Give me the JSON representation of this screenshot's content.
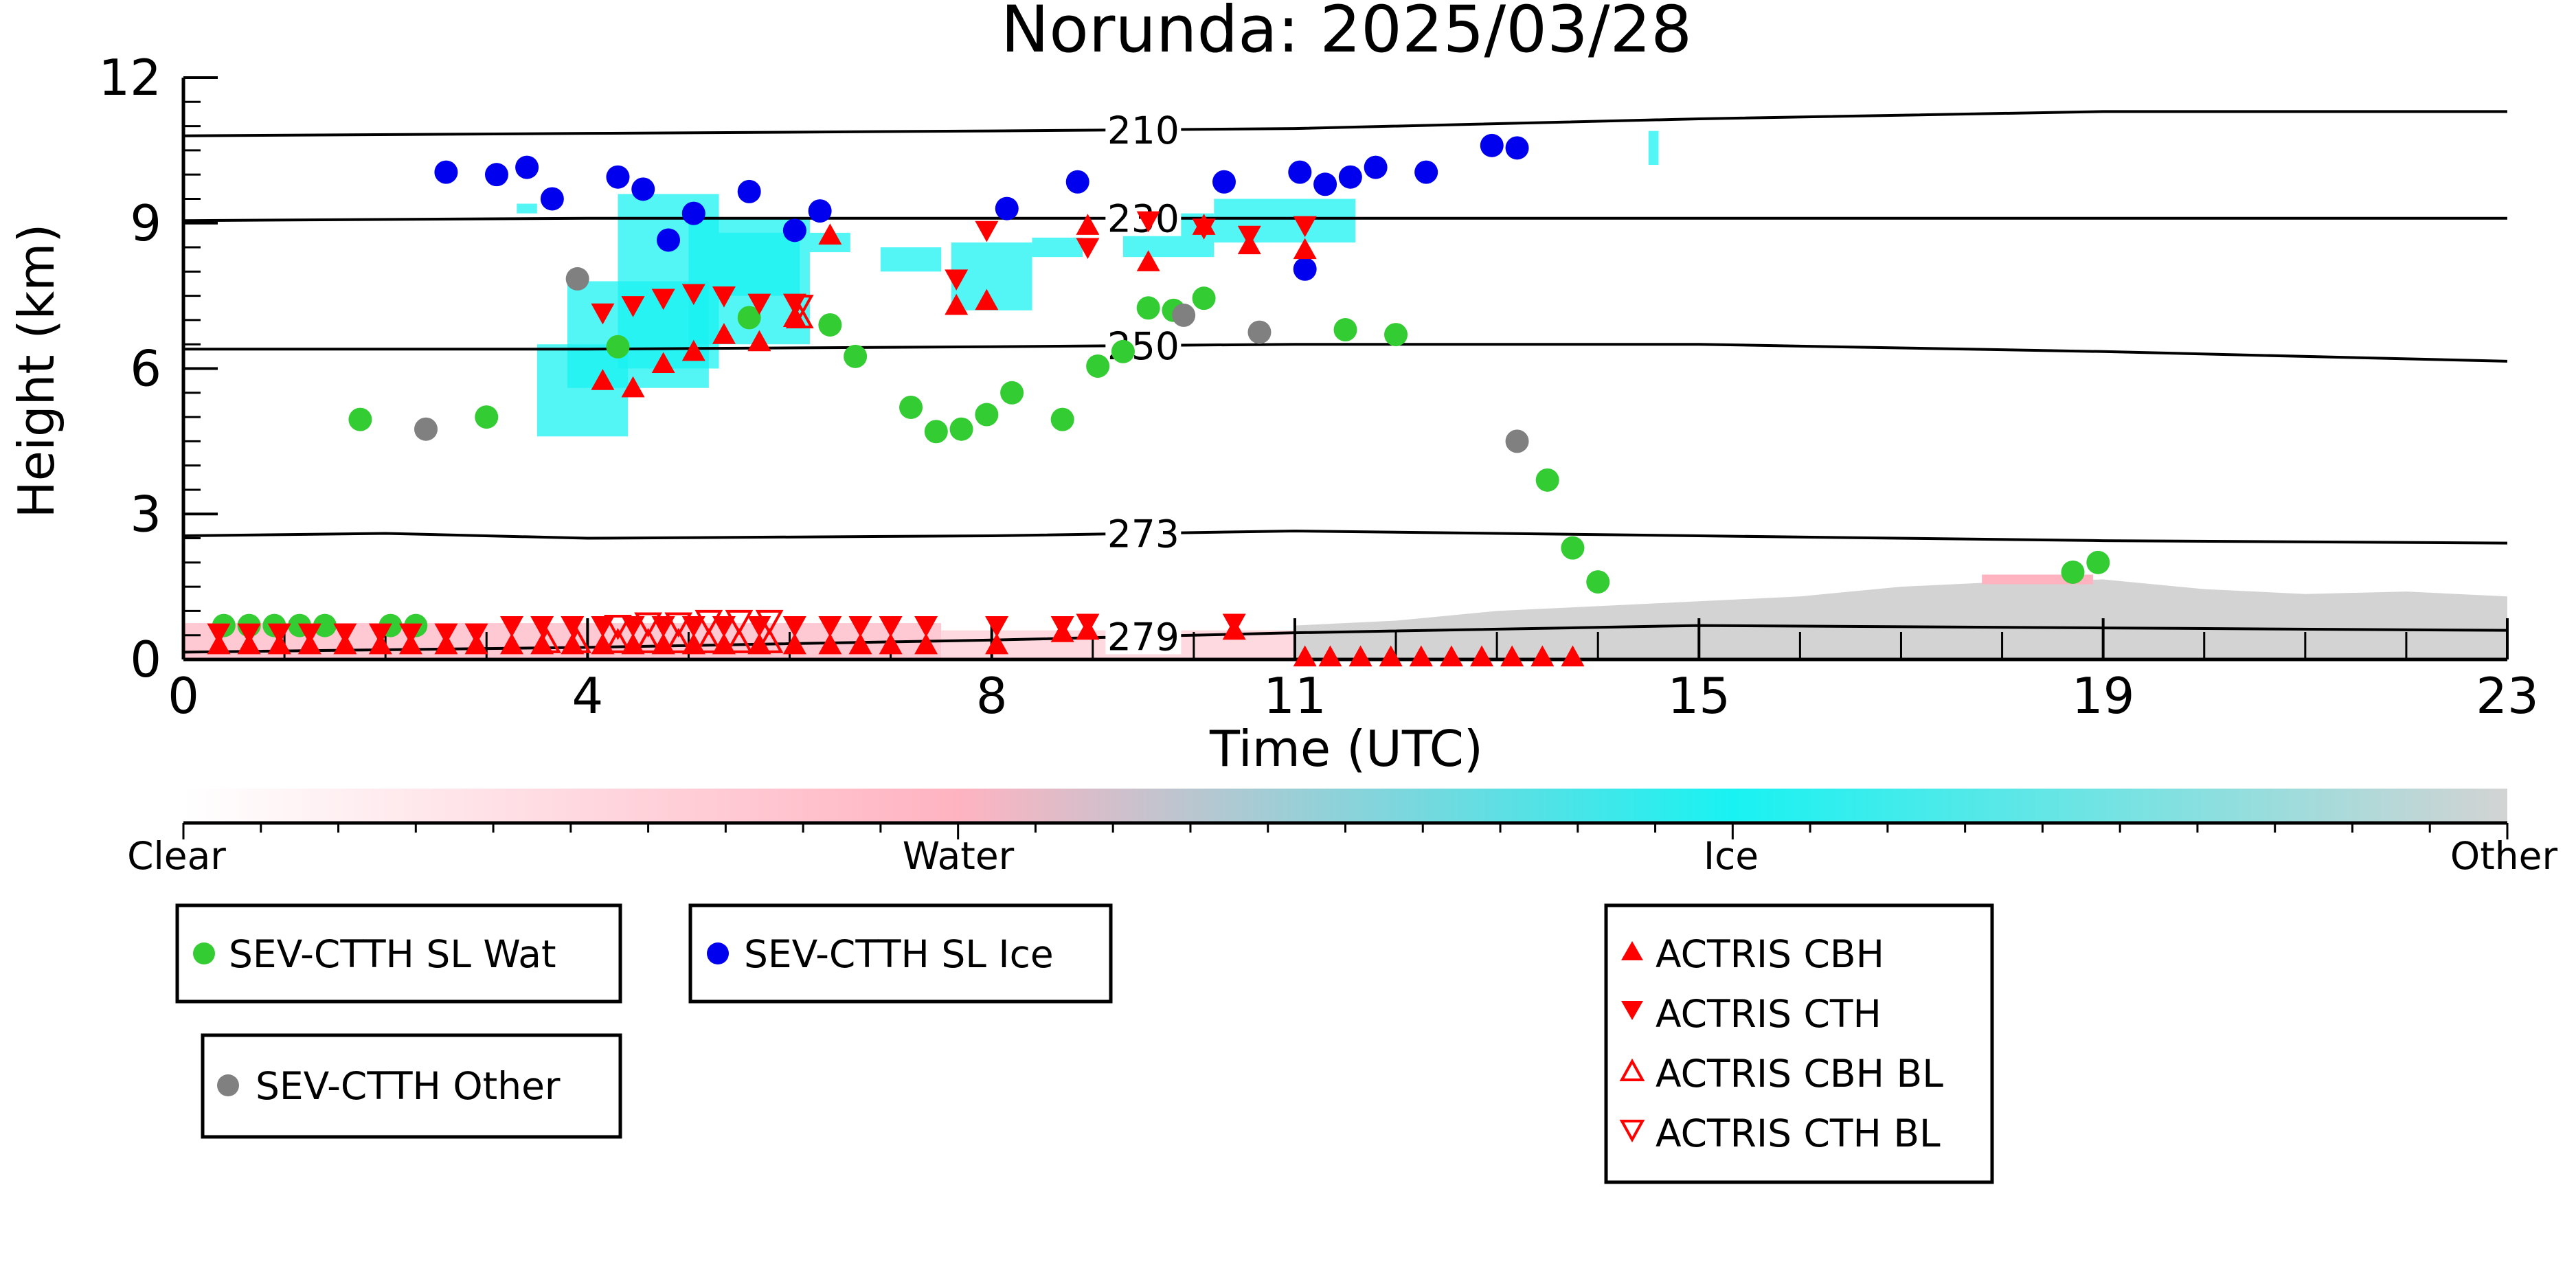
{
  "chart_data": {
    "type": "scatter",
    "title": "Norunda: 2025/03/28",
    "xlabel": "Time (UTC)",
    "ylabel": "Height (km)",
    "xlim": [
      0,
      23
    ],
    "ylim": [
      0,
      12
    ],
    "x_ticks": [
      0,
      4,
      8,
      11,
      15,
      19,
      23
    ],
    "y_ticks": [
      0,
      3,
      6,
      9,
      12
    ],
    "grid": false,
    "colorbar": {
      "labels": [
        "Clear",
        "Water",
        "Ice",
        "Other"
      ],
      "colors": [
        "#ffffff",
        "#ffb3c1",
        "#19f2f2",
        "#d3d3d3"
      ]
    },
    "isotherms": [
      {
        "label": "210",
        "points": [
          [
            0,
            10.8
          ],
          [
            4,
            10.85
          ],
          [
            8,
            10.9
          ],
          [
            11,
            10.95
          ],
          [
            15,
            11.15
          ],
          [
            19,
            11.3
          ],
          [
            23,
            11.3
          ]
        ]
      },
      {
        "label": "230",
        "points": [
          [
            0,
            9.05
          ],
          [
            4,
            9.1
          ],
          [
            8,
            9.1
          ],
          [
            11,
            9.1
          ],
          [
            15,
            9.1
          ],
          [
            19,
            9.1
          ],
          [
            23,
            9.1
          ]
        ]
      },
      {
        "label": "250",
        "points": [
          [
            0,
            6.4
          ],
          [
            4,
            6.4
          ],
          [
            8,
            6.45
          ],
          [
            11,
            6.5
          ],
          [
            15,
            6.5
          ],
          [
            19,
            6.35
          ],
          [
            23,
            6.15
          ]
        ]
      },
      {
        "label": "273",
        "points": [
          [
            0,
            2.55
          ],
          [
            2,
            2.6
          ],
          [
            4,
            2.5
          ],
          [
            8,
            2.55
          ],
          [
            11,
            2.65
          ],
          [
            15,
            2.55
          ],
          [
            19,
            2.45
          ],
          [
            23,
            2.4
          ]
        ]
      },
      {
        "label": "279",
        "points": [
          [
            0,
            0.15
          ],
          [
            4,
            0.25
          ],
          [
            8,
            0.4
          ],
          [
            11,
            0.55
          ],
          [
            15,
            0.7
          ],
          [
            19,
            0.65
          ],
          [
            23,
            0.6
          ]
        ]
      }
    ],
    "series": [
      {
        "name": "SEV-CTTH SL Wat",
        "color": "#33cc33",
        "marker": "circle",
        "x": [
          0.4,
          0.65,
          0.9,
          1.15,
          1.4,
          1.75,
          2.05,
          2.3,
          3,
          4.3,
          5.6,
          6.4,
          6.65,
          7.2,
          7.45,
          7.7,
          7.95,
          8.2,
          8.7,
          9.05,
          9.3,
          9.55,
          9.8,
          10.1,
          11.5,
          12,
          13.5,
          13.75,
          14,
          18.7,
          18.95
        ],
        "y": [
          0.7,
          0.7,
          0.7,
          0.7,
          0.7,
          4.95,
          0.7,
          0.7,
          5,
          6.45,
          7.05,
          6.9,
          6.25,
          5.2,
          4.7,
          4.75,
          5.05,
          5.5,
          4.95,
          6.05,
          6.35,
          7.25,
          7.2,
          7.45,
          6.8,
          6.7,
          3.7,
          2.3,
          1.6,
          1.8,
          2
        ]
      },
      {
        "name": "SEV-CTTH SL Ice",
        "color": "#0000ee",
        "marker": "circle",
        "x": [
          2.6,
          3.1,
          3.4,
          3.65,
          4.3,
          4.55,
          4.8,
          5.05,
          5.6,
          6.05,
          6.3,
          8.15,
          8.85,
          10.3,
          11.05,
          11.3,
          11.55,
          11.8,
          12.3,
          12.95,
          13.2,
          11.1
        ],
        "y": [
          10.05,
          10,
          10.15,
          9.5,
          9.95,
          9.7,
          8.65,
          9.2,
          9.65,
          8.85,
          9.25,
          9.3,
          9.85,
          9.85,
          10.05,
          9.8,
          9.95,
          10.15,
          10.05,
          10.6,
          10.55,
          8.05
        ]
      },
      {
        "name": "SEV-CTTH Other",
        "color": "#808080",
        "marker": "circle",
        "x": [
          2.4,
          3.9,
          9.9,
          10.65,
          13.2
        ],
        "y": [
          4.75,
          7.85,
          7.1,
          6.75,
          4.5
        ]
      },
      {
        "name": "ACTRIS CBH",
        "color": "#ff0000",
        "marker": "triangle-up",
        "x": [
          0.35,
          0.65,
          0.95,
          1.25,
          1.6,
          1.95,
          2.25,
          2.6,
          2.9,
          3.25,
          3.55,
          3.85,
          4.15,
          4.45,
          4.75,
          5.05,
          5.35,
          5.7,
          6.05,
          6.4,
          6.7,
          7,
          7.35,
          8.05,
          8.7,
          8.95,
          10.4,
          11.1,
          11.35,
          11.65,
          11.95,
          12.25,
          12.55,
          12.85,
          13.15,
          13.45,
          13.75,
          4.15,
          4.45,
          4.75,
          5.05,
          5.35,
          5.7,
          6.05,
          6.4,
          7.65,
          7.95,
          8.95,
          9.55,
          10.1,
          10.55,
          11.1
        ],
        "y": [
          0.3,
          0.3,
          0.3,
          0.3,
          0.3,
          0.3,
          0.3,
          0.3,
          0.3,
          0.3,
          0.3,
          0.3,
          0.3,
          0.3,
          0.3,
          0.3,
          0.3,
          0.3,
          0.3,
          0.3,
          0.3,
          0.3,
          0.3,
          0.3,
          0.55,
          0.6,
          0.6,
          0.05,
          0.05,
          0.05,
          0.05,
          0.05,
          0.05,
          0.05,
          0.05,
          0.05,
          0.05,
          5.75,
          5.6,
          6.1,
          6.35,
          6.7,
          6.55,
          7.05,
          8.75,
          7.3,
          7.4,
          8.95,
          8.2,
          8.95,
          8.55,
          8.45
        ]
      },
      {
        "name": "ACTRIS CTH",
        "color": "#ff0000",
        "marker": "triangle-down",
        "x": [
          0.35,
          0.65,
          0.95,
          1.25,
          1.6,
          1.95,
          2.25,
          2.6,
          2.9,
          3.25,
          3.55,
          3.85,
          4.15,
          4.45,
          4.75,
          5.05,
          5.35,
          5.7,
          6.05,
          6.4,
          6.7,
          7,
          7.35,
          8.05,
          8.7,
          8.95,
          10.4,
          4.15,
          4.45,
          4.75,
          5.05,
          5.35,
          5.7,
          6.05,
          7.65,
          7.95,
          8.95,
          9.55,
          10.1,
          10.55,
          11.1
        ],
        "y": [
          0.55,
          0.55,
          0.55,
          0.55,
          0.55,
          0.55,
          0.55,
          0.55,
          0.55,
          0.7,
          0.7,
          0.7,
          0.7,
          0.7,
          0.7,
          0.7,
          0.7,
          0.7,
          0.7,
          0.7,
          0.7,
          0.7,
          0.7,
          0.7,
          0.7,
          0.75,
          0.75,
          7.15,
          7.3,
          7.45,
          7.55,
          7.5,
          7.35,
          7.35,
          7.85,
          8.85,
          8.5,
          9.05,
          8.9,
          8.75,
          8.95
        ]
      },
      {
        "name": "ACTRIS CBH BL",
        "color": "#ff0000",
        "marker": "triangle-up-open",
        "x": [
          4.3,
          4.6,
          4.9,
          5.2,
          5.5,
          5.8,
          6.1,
          3.9,
          3.6
        ],
        "y": [
          0.35,
          0.35,
          0.35,
          0.35,
          0.35,
          0.35,
          7.05,
          0.35,
          0.35
        ]
      },
      {
        "name": "ACTRIS CTH BL",
        "color": "#ff0000",
        "marker": "triangle-down-open",
        "x": [
          4.3,
          4.6,
          4.9,
          5.2,
          5.5,
          5.8,
          6.1
        ],
        "y": [
          0.7,
          0.75,
          0.75,
          0.8,
          0.8,
          0.8,
          7.3
        ]
      }
    ]
  }
}
